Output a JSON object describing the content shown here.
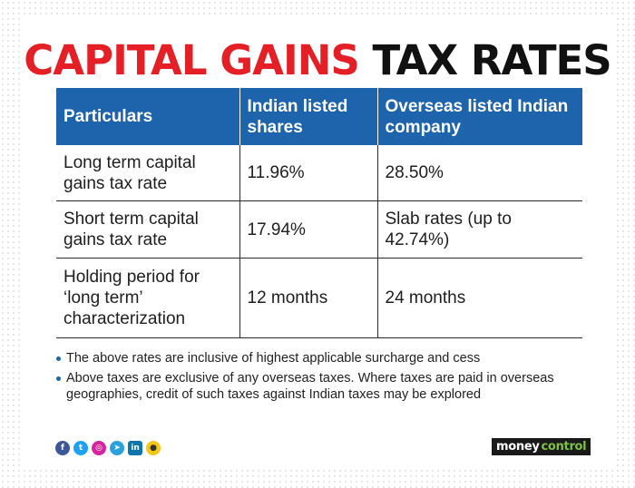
{
  "title": {
    "part1": "CAPITAL GAINS",
    "part2": "TAX RATES"
  },
  "table": {
    "headers": [
      "Particulars",
      "Indian listed shares",
      "Overseas listed Indian company"
    ],
    "rows": [
      [
        "Long term capital gains tax rate",
        "11.96%",
        "28.50%"
      ],
      [
        "Short term capital gains tax rate",
        "17.94%",
        "Slab rates (up to 42.74%)"
      ],
      [
        "Holding period for ‘long term’ characterization",
        "12 months",
        "24 months"
      ]
    ]
  },
  "notes": [
    "The above rates are inclusive of highest applicable surcharge and cess",
    "Above taxes are exclusive of any overseas taxes. Where taxes are paid in overseas geographies, credit of such taxes against Indian taxes may be explored"
  ],
  "social": [
    {
      "icon": "facebook-icon",
      "glyph": "f",
      "color": "#3b5998"
    },
    {
      "icon": "twitter-icon",
      "glyph": "t",
      "color": "#1da1f2"
    },
    {
      "icon": "instagram-icon",
      "glyph": "◎",
      "color": "#d6249f"
    },
    {
      "icon": "telegram-icon",
      "glyph": "➤",
      "color": "#2aa1da"
    },
    {
      "icon": "linkedin-icon",
      "glyph": "in",
      "color": "#0e76a8"
    },
    {
      "icon": "koo-icon",
      "glyph": "●",
      "color": "#f5c518"
    }
  ],
  "logo": {
    "part1": "money",
    "part2": "control"
  },
  "colors": {
    "accent_red": "#e41f26",
    "header_blue": "#1d64ad"
  }
}
